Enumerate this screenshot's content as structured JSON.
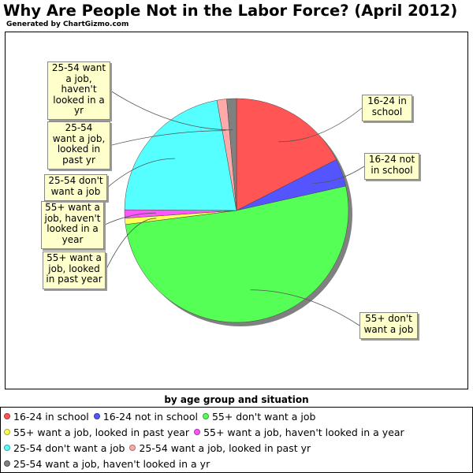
{
  "title": "Why Are People Not in the Labor Force? (April 2012)",
  "credit": "Generated by ChartGizmo.com",
  "chart_data": {
    "type": "pie",
    "title": "Why Are People Not in the Labor Force? (April 2012)",
    "xlabel": "by age group and situation",
    "legend_position": "bottom",
    "categories": [
      "16-24 in school",
      "16-24 not in school",
      "55+ don't want a job",
      "55+ want a job, looked in past year",
      "55+ want a job, haven't looked in a year",
      "25-54 don't want a job",
      "25-54 want a job, looked in past yr",
      "25-54 want a job, haven't looked in a yr"
    ],
    "values": [
      17.5,
      4.0,
      51.5,
      0.9,
      1.2,
      22.1,
      1.4,
      1.4
    ],
    "colors": [
      "#ff5555",
      "#5555ff",
      "#55ff55",
      "#ffff55",
      "#ff55ff",
      "#55ffff",
      "#ffaaaa",
      "#808080"
    ],
    "callout_labels": [
      "16-24 in\nschool",
      "16-24 not\nin school",
      "55+ don't\nwant a job",
      "55+ want a\njob, looked\nin past year",
      "55+ want a\njob, haven't\nlooked in a\nyear",
      "25-54 don't\nwant a job",
      "25-54\nwant a job,\nlooked in\npast yr",
      "25-54 want\na job,\nhaven't\nlooked in a\nyr"
    ]
  }
}
